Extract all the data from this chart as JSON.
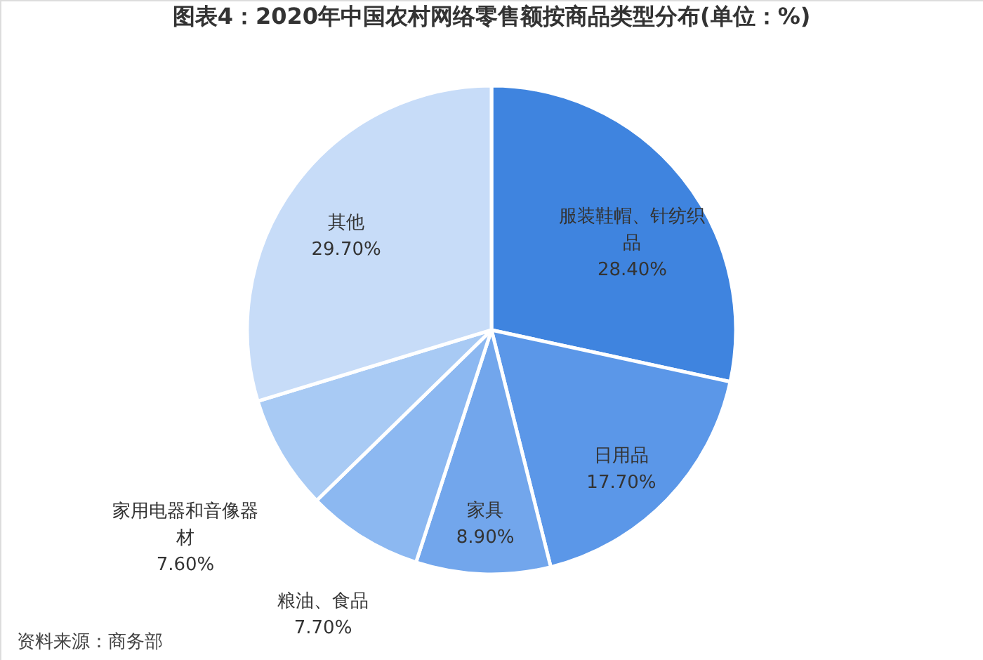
{
  "chart_data": {
    "type": "pie",
    "title": "图表4：2020年中国农村网络零售额按商品类型分布(单位：%)",
    "categories": [
      "服装鞋帽、针纺织品",
      "日用品",
      "家具",
      "粮油、食品",
      "家用电器和音像器材",
      "其他"
    ],
    "values": [
      28.4,
      17.7,
      8.9,
      7.7,
      7.6,
      29.7
    ],
    "value_labels": [
      "28.40%",
      "17.70%",
      "8.90%",
      "7.70%",
      "7.60%",
      "29.70%"
    ],
    "colors": [
      "#3f84df",
      "#5b97e8",
      "#72a6ec",
      "#8cb8f1",
      "#a8caf4",
      "#c7dcf8"
    ],
    "annotations": [
      "资料来源：商务部"
    ]
  }
}
